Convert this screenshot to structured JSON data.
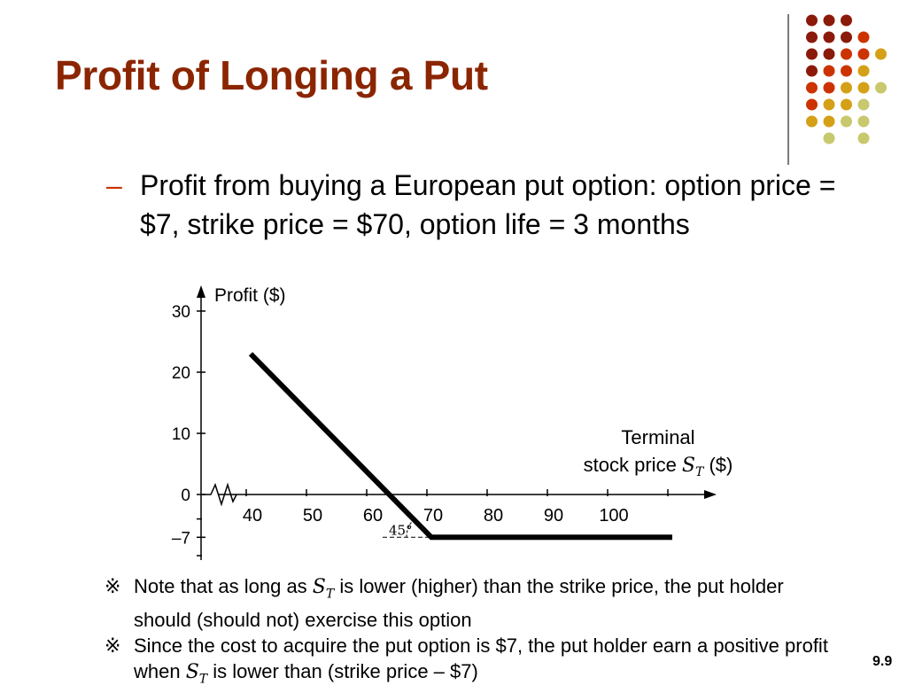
{
  "slide": {
    "title": "Profit of Longing a Put",
    "page_number": "9.9",
    "bullet": {
      "marker": "–",
      "text": "Profit from buying a European put option: option price = $7, strike price = $70, option life = 3 months"
    },
    "notes": [
      {
        "symbol": "※",
        "before": "Note that as long as ",
        "var": "S",
        "sub": "T",
        "after": " is lower (higher) than the strike price, the put holder should (should not) exercise this option"
      },
      {
        "symbol": "※",
        "before": "Since the cost to acquire the put option is $7, the put holder earn a positive profit when ",
        "var": "S",
        "sub": "T",
        "after": " is lower than (strike price – $7)"
      }
    ]
  },
  "colors": {
    "title": "#8b2500",
    "dash": "#cc3300",
    "dots": [
      "#8b1a0a",
      "#cc3300",
      "#d4a017",
      "#c8c86e"
    ]
  },
  "chart_data": {
    "type": "line",
    "ylabel": "Profit ($)",
    "xlabel_line1": "Terminal",
    "xlabel_line2_prefix": "stock price ",
    "xlabel_var": "S",
    "xlabel_sub": "T",
    "xlabel_line2_suffix": " ($)",
    "x_ticks": [
      40,
      50,
      60,
      70,
      80,
      90,
      100
    ],
    "y_ticks": [
      {
        "value": 30,
        "label": "30"
      },
      {
        "value": 20,
        "label": "20"
      },
      {
        "value": 10,
        "label": "10"
      },
      {
        "value": 0,
        "label": "0"
      },
      {
        "value": -7,
        "label": "–7"
      }
    ],
    "xlim": [
      37,
      118
    ],
    "ylim": [
      -10,
      30
    ],
    "axis_break": true,
    "series": [
      {
        "x": [
          40,
          70,
          110
        ],
        "y": [
          23,
          -7,
          -7
        ]
      }
    ],
    "annotation": {
      "text": "45°",
      "x": 70,
      "y": -7
    }
  }
}
